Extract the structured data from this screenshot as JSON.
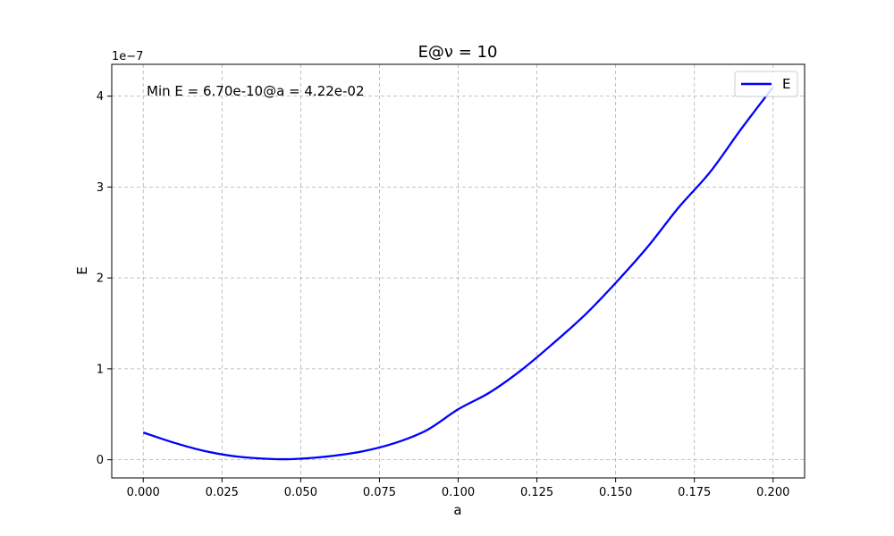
{
  "chart_data": {
    "type": "line",
    "title": "E@ν = 10",
    "xlabel": "a",
    "ylabel": "E",
    "y_scale_label": "1e−7",
    "xlim": [
      -0.01,
      0.21
    ],
    "ylim": [
      -0.2,
      4.35
    ],
    "y_units_multiplier": 1e-07,
    "x_ticks": [
      0.0,
      0.025,
      0.05,
      0.075,
      0.1,
      0.125,
      0.15,
      0.175,
      0.2
    ],
    "x_tick_labels": [
      "0.000",
      "0.025",
      "0.050",
      "0.075",
      "0.100",
      "0.125",
      "0.150",
      "0.175",
      "0.200"
    ],
    "y_ticks": [
      0,
      1,
      2,
      3,
      4
    ],
    "y_tick_labels": [
      "0",
      "1",
      "2",
      "3",
      "4"
    ],
    "grid": true,
    "legend_position": "top-right",
    "annotation": "Min E = 6.70e-10@a = 4.22e-02",
    "series": [
      {
        "name": "E",
        "color": "#0000ff",
        "x": [
          0.0,
          0.01,
          0.02,
          0.03,
          0.0422,
          0.05,
          0.06,
          0.07,
          0.08,
          0.09,
          0.1,
          0.11,
          0.12,
          0.13,
          0.14,
          0.15,
          0.16,
          0.17,
          0.18,
          0.19,
          0.2
        ],
        "y": [
          0.3,
          0.185,
          0.092,
          0.035,
          0.0067,
          0.012,
          0.042,
          0.095,
          0.185,
          0.325,
          0.555,
          0.74,
          0.985,
          1.275,
          1.585,
          1.945,
          2.335,
          2.775,
          3.165,
          3.645,
          4.1
        ]
      }
    ]
  }
}
